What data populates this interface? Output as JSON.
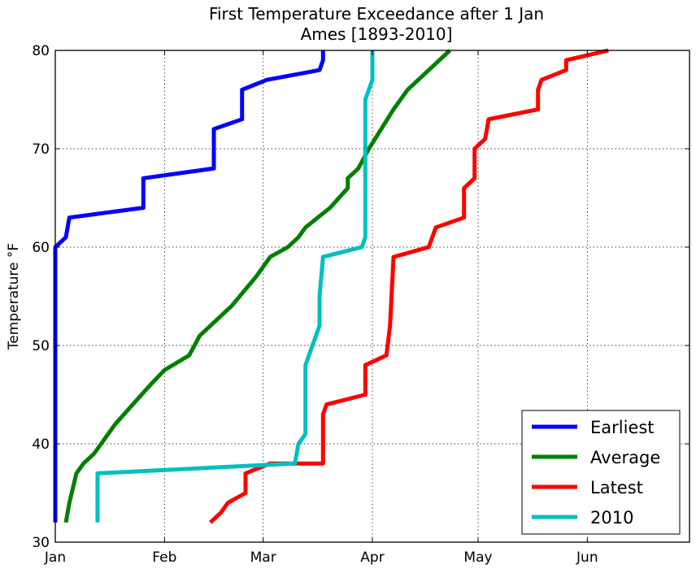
{
  "chart_data": {
    "type": "line",
    "title": "First Temperature Exceedance after 1 Jan",
    "subtitle": "Ames [1893-2010]",
    "xlabel": "",
    "ylabel": "Temperature °F",
    "xlim": [
      "Jan 1",
      "Jun 30"
    ],
    "ylim": [
      30,
      80
    ],
    "grid": true,
    "legend_position": "bottom-right",
    "x_ticks": [
      {
        "label": "Jan",
        "day": 0
      },
      {
        "label": "Feb",
        "day": 31
      },
      {
        "label": "Mar",
        "day": 59
      },
      {
        "label": "Apr",
        "day": 90
      },
      {
        "label": "May",
        "day": 120
      },
      {
        "label": "Jun",
        "day": 151
      }
    ],
    "y_ticks": [
      30,
      40,
      50,
      60,
      70,
      80
    ],
    "series": [
      {
        "name": "Earliest",
        "color": "#0000ff",
        "points": [
          [
            0,
            32
          ],
          [
            0,
            60
          ],
          [
            3,
            61
          ],
          [
            4,
            63
          ],
          [
            25,
            64
          ],
          [
            25,
            67
          ],
          [
            45,
            68
          ],
          [
            45,
            72
          ],
          [
            53,
            73
          ],
          [
            53,
            76
          ],
          [
            60,
            77
          ],
          [
            75,
            78
          ],
          [
            76,
            79
          ],
          [
            76,
            80
          ]
        ]
      },
      {
        "name": "Average",
        "color": "#008000",
        "points": [
          [
            3,
            32
          ],
          [
            4,
            34
          ],
          [
            6,
            37
          ],
          [
            8,
            38
          ],
          [
            11,
            39
          ],
          [
            17,
            42
          ],
          [
            22,
            44
          ],
          [
            27,
            46
          ],
          [
            31,
            47.5
          ],
          [
            38,
            49
          ],
          [
            41,
            51
          ],
          [
            50,
            54
          ],
          [
            57,
            57
          ],
          [
            61,
            59
          ],
          [
            66,
            60
          ],
          [
            69,
            61
          ],
          [
            71,
            62
          ],
          [
            78,
            64
          ],
          [
            83,
            66
          ],
          [
            83,
            67
          ],
          [
            86,
            68
          ],
          [
            89,
            70
          ],
          [
            96,
            74
          ],
          [
            100,
            76
          ],
          [
            106,
            78
          ],
          [
            112,
            80
          ]
        ]
      },
      {
        "name": "Latest",
        "color": "#ff0000",
        "points": [
          [
            44,
            32
          ],
          [
            47,
            33
          ],
          [
            49,
            34
          ],
          [
            54,
            35
          ],
          [
            54,
            37
          ],
          [
            61,
            38
          ],
          [
            76,
            38
          ],
          [
            76,
            43
          ],
          [
            77,
            44
          ],
          [
            88,
            45
          ],
          [
            88,
            48
          ],
          [
            94,
            49
          ],
          [
            95,
            52
          ],
          [
            96,
            59
          ],
          [
            106,
            60
          ],
          [
            107,
            61
          ],
          [
            108,
            62
          ],
          [
            116,
            63
          ],
          [
            116,
            66
          ],
          [
            119,
            67
          ],
          [
            119,
            70
          ],
          [
            122,
            71
          ],
          [
            123,
            73
          ],
          [
            137,
            74
          ],
          [
            137,
            76
          ],
          [
            138,
            77
          ],
          [
            145,
            78
          ],
          [
            145,
            79
          ],
          [
            157,
            80
          ]
        ]
      },
      {
        "name": "2010",
        "color": "#00bfbf",
        "points": [
          [
            12,
            32
          ],
          [
            12,
            37
          ],
          [
            68,
            38
          ],
          [
            69,
            40
          ],
          [
            71,
            41
          ],
          [
            71,
            48
          ],
          [
            73,
            50
          ],
          [
            75,
            52
          ],
          [
            75,
            55
          ],
          [
            76,
            59
          ],
          [
            87,
            60
          ],
          [
            88,
            61
          ],
          [
            88,
            66
          ],
          [
            88,
            75
          ],
          [
            90,
            77
          ],
          [
            90,
            80
          ]
        ]
      }
    ]
  }
}
